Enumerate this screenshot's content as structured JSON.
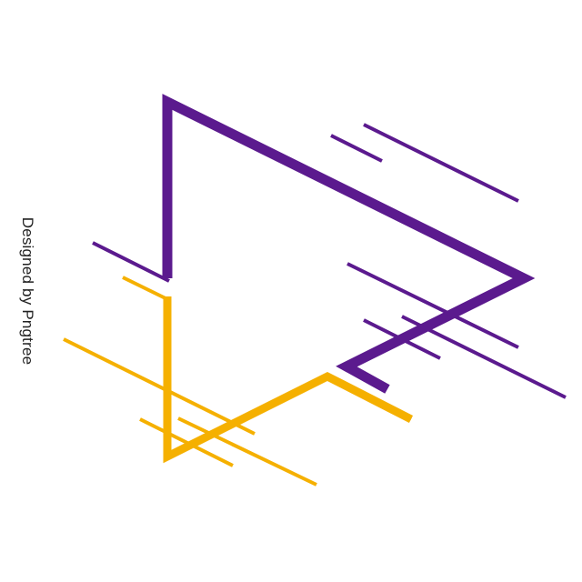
{
  "watermark": {
    "text": "Designed by Pngtree"
  },
  "colors": {
    "background": "#ffffff",
    "purple": "#5b1a8e",
    "gold": "#f5b000"
  },
  "artwork": {
    "description_icon": "abstract-geometric-play-triangle"
  }
}
